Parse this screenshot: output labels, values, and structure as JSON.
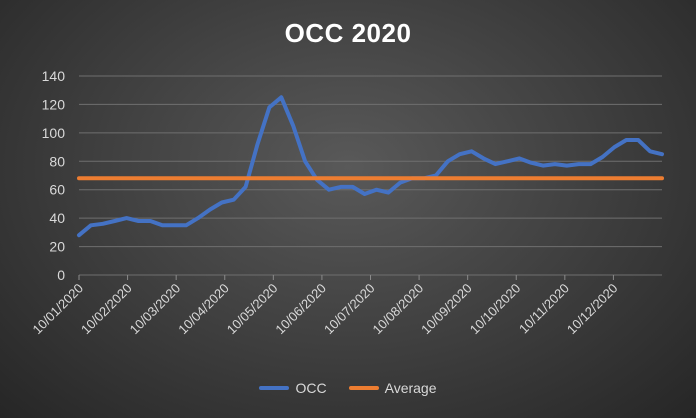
{
  "chart_data": {
    "type": "line",
    "title": "OCC 2020",
    "xlabel": "",
    "ylabel": "",
    "ylim": [
      0,
      140
    ],
    "yticks": [
      0,
      20,
      40,
      60,
      80,
      100,
      120,
      140
    ],
    "grid": true,
    "legend_position": "bottom",
    "x_tick_labels": [
      "10/01/2020",
      "10/02/2020",
      "10/03/2020",
      "10/04/2020",
      "10/05/2020",
      "10/06/2020",
      "10/07/2020",
      "10/08/2020",
      "10/09/2020",
      "10/10/2020",
      "10/11/2020",
      "10/12/2020"
    ],
    "series": [
      {
        "name": "OCC",
        "color": "#4472C4",
        "values": [
          28,
          35,
          36,
          38,
          40,
          38,
          38,
          35,
          35,
          35,
          40,
          46,
          51,
          53,
          62,
          92,
          118,
          125,
          105,
          80,
          67,
          60,
          62,
          62,
          57,
          60,
          58,
          65,
          68,
          68,
          70,
          80,
          85,
          87,
          82,
          78,
          80,
          82,
          79,
          77,
          78,
          77,
          78,
          78,
          83,
          90,
          95,
          95,
          87,
          85
        ]
      },
      {
        "name": "Average",
        "color": "#ED7D31",
        "values": [
          68,
          68,
          68,
          68,
          68,
          68,
          68,
          68,
          68,
          68,
          68,
          68,
          68,
          68,
          68,
          68,
          68,
          68,
          68,
          68,
          68,
          68,
          68,
          68,
          68,
          68,
          68,
          68,
          68,
          68,
          68,
          68,
          68,
          68,
          68,
          68,
          68,
          68,
          68,
          68,
          68,
          68,
          68,
          68,
          68,
          68,
          68,
          68,
          68,
          68
        ]
      }
    ]
  }
}
